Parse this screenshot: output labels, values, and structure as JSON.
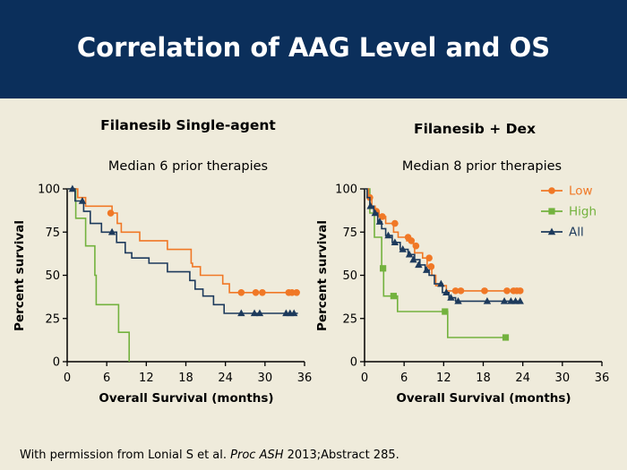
{
  "slide": {
    "title": "Correlation of AAG Level and OS",
    "footer_prefix": "With permission from Lonial S et al. ",
    "footer_journal": "Proc ASH",
    "footer_suffix": " 2013;Abstract 285."
  },
  "colors": {
    "title_bg": "#0b2f5b",
    "background": "#efebdb",
    "low": "#f07826",
    "high": "#73b23e",
    "all": "#1d3a5c"
  },
  "chart_data": [
    {
      "type": "line",
      "subtype": "kaplan-meier-step",
      "title": "Filanesib Single-agent",
      "subtitle": "Median 6 prior therapies",
      "xlabel": "Overall Survival (months)",
      "ylabel": "Percent survival",
      "xlim": [
        0,
        36
      ],
      "ylim": [
        0,
        100
      ],
      "xticks": [
        0,
        6,
        12,
        18,
        24,
        30,
        36
      ],
      "yticks": [
        0,
        25,
        50,
        75,
        100
      ],
      "legend": null,
      "series": [
        {
          "key": "low",
          "marker": "circle",
          "steps": [
            [
              0,
              100
            ],
            [
              1.6,
              100
            ],
            [
              1.6,
              95
            ],
            [
              2.8,
              95
            ],
            [
              2.8,
              90
            ],
            [
              6.8,
              90
            ],
            [
              6.8,
              86
            ],
            [
              7.6,
              86
            ],
            [
              7.6,
              80
            ],
            [
              8.2,
              80
            ],
            [
              8.2,
              75
            ],
            [
              11,
              75
            ],
            [
              11,
              70
            ],
            [
              15.2,
              70
            ],
            [
              15.2,
              65
            ],
            [
              18.8,
              65
            ],
            [
              18.8,
              57
            ],
            [
              19,
              57
            ],
            [
              19,
              55
            ],
            [
              20.2,
              55
            ],
            [
              20.2,
              50
            ],
            [
              23.6,
              50
            ],
            [
              23.6,
              45
            ],
            [
              24.6,
              45
            ],
            [
              24.6,
              40
            ],
            [
              35,
              40
            ]
          ],
          "censors": [
            [
              6.6,
              86
            ],
            [
              26.4,
              40
            ],
            [
              28.6,
              40
            ],
            [
              29.6,
              40
            ],
            [
              33.6,
              40
            ],
            [
              34.1,
              40
            ],
            [
              34.8,
              40
            ]
          ]
        },
        {
          "key": "high",
          "marker": "square",
          "steps": [
            [
              0,
              100
            ],
            [
              1.3,
              100
            ],
            [
              1.3,
              83
            ],
            [
              2.8,
              83
            ],
            [
              2.8,
              67
            ],
            [
              4.2,
              67
            ],
            [
              4.2,
              50
            ],
            [
              4.4,
              50
            ],
            [
              4.4,
              33
            ],
            [
              7.8,
              33
            ],
            [
              7.8,
              17
            ],
            [
              9.4,
              17
            ],
            [
              9.4,
              0
            ]
          ],
          "censors": []
        },
        {
          "key": "all",
          "marker": "triangle",
          "steps": [
            [
              0,
              100
            ],
            [
              1.2,
              100
            ],
            [
              1.2,
              93
            ],
            [
              2.5,
              93
            ],
            [
              2.5,
              87
            ],
            [
              3.5,
              87
            ],
            [
              3.5,
              80
            ],
            [
              5.2,
              80
            ],
            [
              5.2,
              75
            ],
            [
              7.5,
              75
            ],
            [
              7.5,
              69
            ],
            [
              8.8,
              69
            ],
            [
              8.8,
              63
            ],
            [
              9.8,
              63
            ],
            [
              9.8,
              60
            ],
            [
              12.4,
              60
            ],
            [
              12.4,
              57
            ],
            [
              15.2,
              57
            ],
            [
              15.2,
              52
            ],
            [
              18.6,
              52
            ],
            [
              18.6,
              47
            ],
            [
              19.4,
              47
            ],
            [
              19.4,
              42
            ],
            [
              20.6,
              42
            ],
            [
              20.6,
              38
            ],
            [
              22.2,
              38
            ],
            [
              22.2,
              33
            ],
            [
              23.8,
              33
            ],
            [
              23.8,
              28
            ],
            [
              35,
              28
            ]
          ],
          "censors": [
            [
              0.8,
              100
            ],
            [
              2.3,
              93
            ],
            [
              6.8,
              75
            ],
            [
              26.4,
              28
            ],
            [
              28.4,
              28
            ],
            [
              29.2,
              28
            ],
            [
              33.2,
              28
            ],
            [
              33.8,
              28
            ],
            [
              34.4,
              28
            ]
          ]
        }
      ]
    },
    {
      "type": "line",
      "subtype": "kaplan-meier-step",
      "title": "Filanesib + Dex",
      "subtitle": "Median 8 prior therapies",
      "xlabel": "Overall Survival (months)",
      "ylabel": "Percent survival",
      "xlim": [
        0,
        36
      ],
      "ylim": [
        0,
        100
      ],
      "xticks": [
        0,
        6,
        12,
        18,
        24,
        30,
        36
      ],
      "yticks": [
        0,
        25,
        50,
        75,
        100
      ],
      "legend": "top-right",
      "series": [
        {
          "key": "low",
          "name": "Low",
          "marker": "circle",
          "steps": [
            [
              0,
              100
            ],
            [
              0.6,
              100
            ],
            [
              0.6,
              95
            ],
            [
              1.1,
              95
            ],
            [
              1.1,
              90
            ],
            [
              1.6,
              90
            ],
            [
              1.6,
              87
            ],
            [
              2.2,
              87
            ],
            [
              2.2,
              84
            ],
            [
              3.2,
              84
            ],
            [
              3.2,
              80
            ],
            [
              4.4,
              80
            ],
            [
              4.4,
              75
            ],
            [
              5.1,
              75
            ],
            [
              5.1,
              72
            ],
            [
              6.4,
              72
            ],
            [
              6.4,
              70
            ],
            [
              7.4,
              70
            ],
            [
              7.4,
              67
            ],
            [
              7.6,
              67
            ],
            [
              7.6,
              63
            ],
            [
              8.8,
              63
            ],
            [
              8.8,
              60
            ],
            [
              9.5,
              60
            ],
            [
              9.5,
              55
            ],
            [
              10.2,
              55
            ],
            [
              10.2,
              50
            ],
            [
              10.8,
              50
            ],
            [
              10.8,
              44
            ],
            [
              12.4,
              44
            ],
            [
              12.4,
              41
            ],
            [
              23.6,
              41
            ]
          ],
          "censors": [
            [
              0.8,
              95
            ],
            [
              1.8,
              87
            ],
            [
              2.7,
              84
            ],
            [
              4.6,
              80
            ],
            [
              6.6,
              72
            ],
            [
              7.1,
              70
            ],
            [
              7.8,
              67
            ],
            [
              9.8,
              60
            ],
            [
              10.1,
              55
            ],
            [
              13.8,
              41
            ],
            [
              14.6,
              41
            ],
            [
              18.2,
              41
            ],
            [
              21.6,
              41
            ],
            [
              22.6,
              41
            ],
            [
              23.1,
              41
            ],
            [
              23.6,
              41
            ]
          ]
        },
        {
          "key": "high",
          "name": "High",
          "marker": "square",
          "steps": [
            [
              0,
              100
            ],
            [
              0.8,
              100
            ],
            [
              0.8,
              86
            ],
            [
              1.5,
              86
            ],
            [
              1.5,
              72
            ],
            [
              2.6,
              72
            ],
            [
              2.6,
              53
            ],
            [
              2.9,
              53
            ],
            [
              2.9,
              38
            ],
            [
              5,
              38
            ],
            [
              5,
              29
            ],
            [
              12.6,
              29
            ],
            [
              12.6,
              14
            ],
            [
              21.4,
              14
            ]
          ],
          "censors": [
            [
              2.8,
              54
            ],
            [
              4.4,
              38
            ],
            [
              12.2,
              29
            ],
            [
              21.4,
              14
            ]
          ]
        },
        {
          "key": "all",
          "name": "All",
          "marker": "triangle",
          "steps": [
            [
              0,
              100
            ],
            [
              0.4,
              100
            ],
            [
              0.4,
              95
            ],
            [
              0.8,
              95
            ],
            [
              0.8,
              90
            ],
            [
              1.4,
              90
            ],
            [
              1.4,
              86
            ],
            [
              2,
              86
            ],
            [
              2,
              81
            ],
            [
              2.6,
              81
            ],
            [
              2.6,
              77
            ],
            [
              3.2,
              77
            ],
            [
              3.2,
              73
            ],
            [
              4.2,
              73
            ],
            [
              4.2,
              69
            ],
            [
              5.4,
              69
            ],
            [
              5.4,
              65
            ],
            [
              6.6,
              65
            ],
            [
              6.6,
              62
            ],
            [
              7.6,
              62
            ],
            [
              7.6,
              59
            ],
            [
              8.4,
              59
            ],
            [
              8.4,
              56
            ],
            [
              9.2,
              56
            ],
            [
              9.2,
              53
            ],
            [
              9.8,
              53
            ],
            [
              9.8,
              50
            ],
            [
              10.6,
              50
            ],
            [
              10.6,
              45
            ],
            [
              11.8,
              45
            ],
            [
              11.8,
              40
            ],
            [
              12.8,
              40
            ],
            [
              12.8,
              37
            ],
            [
              13.8,
              37
            ],
            [
              13.8,
              35
            ],
            [
              23.8,
              35
            ]
          ],
          "censors": [
            [
              0.9,
              90
            ],
            [
              1.6,
              86
            ],
            [
              2.3,
              81
            ],
            [
              3.6,
              73
            ],
            [
              4.6,
              69
            ],
            [
              5.8,
              65
            ],
            [
              6.8,
              62
            ],
            [
              7.4,
              59
            ],
            [
              8.2,
              56
            ],
            [
              9.4,
              53
            ],
            [
              11.6,
              45
            ],
            [
              12.4,
              40
            ],
            [
              13.1,
              37
            ],
            [
              14.2,
              35
            ],
            [
              18.6,
              35
            ],
            [
              21.2,
              35
            ],
            [
              22.2,
              35
            ],
            [
              22.9,
              35
            ],
            [
              23.6,
              35
            ]
          ]
        }
      ]
    }
  ]
}
